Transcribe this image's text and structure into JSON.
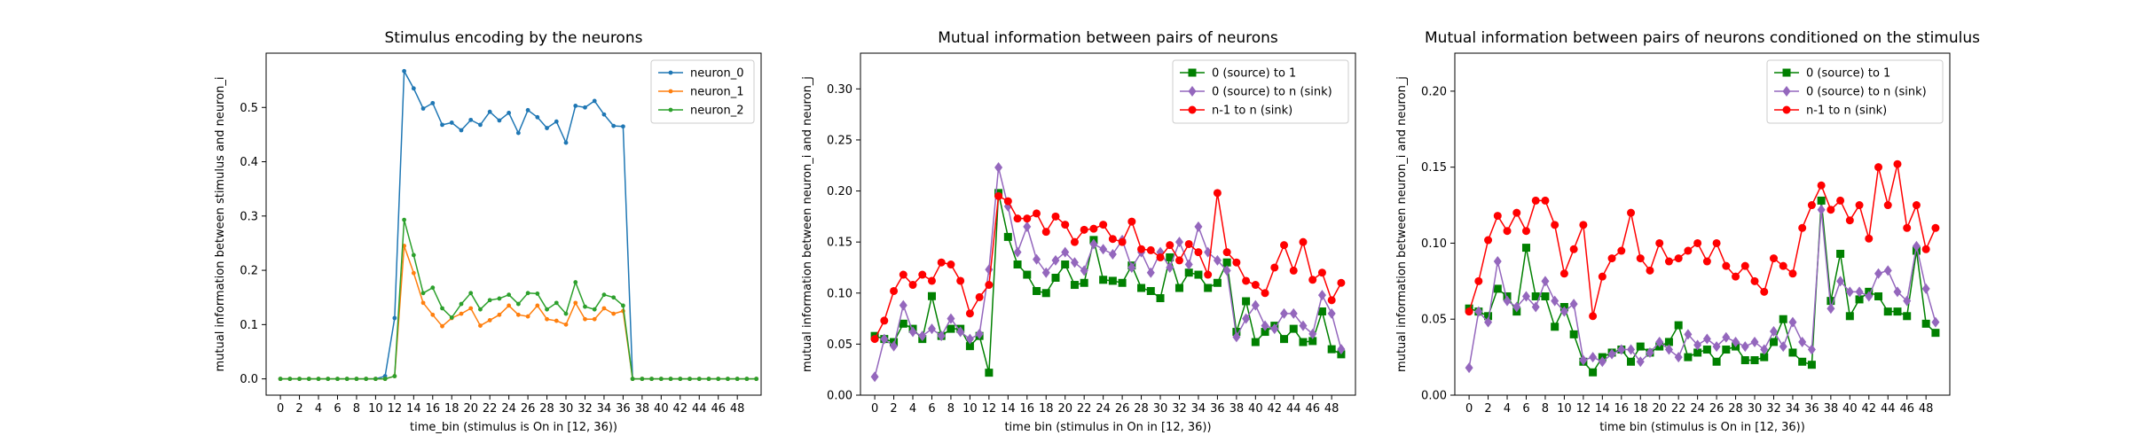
{
  "chart_data": [
    {
      "type": "line",
      "title": "Stimulus encoding by the neurons",
      "xlabel": "time_bin (stimulus is On in [12, 36))",
      "ylabel": "mutual information between stimulus and neuron_i",
      "xlim": [
        -1.5,
        50.5
      ],
      "ylim": [
        -0.03,
        0.6
      ],
      "xticks": [
        0,
        2,
        4,
        6,
        8,
        10,
        12,
        14,
        16,
        18,
        20,
        22,
        24,
        26,
        28,
        30,
        32,
        34,
        36,
        38,
        40,
        42,
        44,
        46,
        48
      ],
      "yticks": [
        0.0,
        0.1,
        0.2,
        0.3,
        0.4,
        0.5
      ],
      "ytick_labels": [
        "0.0",
        "0.1",
        "0.2",
        "0.3",
        "0.4",
        "0.5"
      ],
      "legend": "top-right",
      "grid": false,
      "series": [
        {
          "name": "neuron_0",
          "color": "#1f77b4",
          "marker": "dot",
          "values": [
            0,
            0,
            0,
            0,
            0,
            0,
            0,
            0,
            0,
            0,
            0,
            0.005,
            0.112,
            0.567,
            0.535,
            0.498,
            0.508,
            0.468,
            0.472,
            0.458,
            0.477,
            0.468,
            0.492,
            0.476,
            0.49,
            0.453,
            0.495,
            0.482,
            0.462,
            0.474,
            0.435,
            0.503,
            0.5,
            0.512,
            0.487,
            0.466,
            0.465,
            0,
            0,
            0,
            0,
            0,
            0,
            0,
            0,
            0,
            0,
            0,
            0,
            0,
            0
          ]
        },
        {
          "name": "neuron_1",
          "color": "#ff7f0e",
          "marker": "dot",
          "values": [
            0,
            0,
            0,
            0,
            0,
            0,
            0,
            0,
            0,
            0,
            0,
            0,
            0.005,
            0.245,
            0.195,
            0.14,
            0.118,
            0.097,
            0.112,
            0.12,
            0.13,
            0.098,
            0.108,
            0.118,
            0.135,
            0.118,
            0.115,
            0.135,
            0.11,
            0.107,
            0.1,
            0.14,
            0.11,
            0.11,
            0.13,
            0.12,
            0.125,
            0,
            0,
            0,
            0,
            0,
            0,
            0,
            0,
            0,
            0,
            0,
            0,
            0,
            0
          ]
        },
        {
          "name": "neuron_2",
          "color": "#2ca02c",
          "marker": "dot",
          "values": [
            0,
            0,
            0,
            0,
            0,
            0,
            0,
            0,
            0,
            0,
            0,
            0,
            0.005,
            0.293,
            0.228,
            0.158,
            0.168,
            0.13,
            0.113,
            0.138,
            0.158,
            0.128,
            0.145,
            0.148,
            0.155,
            0.138,
            0.158,
            0.157,
            0.128,
            0.14,
            0.12,
            0.178,
            0.133,
            0.128,
            0.155,
            0.15,
            0.135,
            0,
            0,
            0,
            0,
            0,
            0,
            0,
            0,
            0,
            0,
            0,
            0,
            0,
            0
          ]
        }
      ]
    },
    {
      "type": "line",
      "title": "Mutual information between pairs of neurons",
      "xlabel": "time bin (stimulus in On in [12, 36))",
      "ylabel": "mutual information between neuron_i and neuron_j",
      "xlim": [
        -1.5,
        50.5
      ],
      "ylim": [
        0.0,
        0.335
      ],
      "xticks": [
        0,
        2,
        4,
        6,
        8,
        10,
        12,
        14,
        16,
        18,
        20,
        22,
        24,
        26,
        28,
        30,
        32,
        34,
        36,
        38,
        40,
        42,
        44,
        46,
        48
      ],
      "yticks": [
        0.0,
        0.05,
        0.1,
        0.15,
        0.2,
        0.25,
        0.3
      ],
      "ytick_labels": [
        "0.00",
        "0.05",
        "0.10",
        "0.15",
        "0.20",
        "0.25",
        "0.30"
      ],
      "legend": "top-right",
      "grid": false,
      "series": [
        {
          "name": "0 (source) to 1",
          "color": "#008000",
          "marker": "square",
          "values": [
            0.058,
            0.055,
            0.052,
            0.07,
            0.065,
            0.055,
            0.097,
            0.058,
            0.065,
            0.065,
            0.048,
            0.058,
            0.022,
            0.198,
            0.155,
            0.128,
            0.118,
            0.102,
            0.1,
            0.115,
            0.128,
            0.108,
            0.11,
            0.152,
            0.113,
            0.112,
            0.11,
            0.127,
            0.105,
            0.102,
            0.095,
            0.135,
            0.105,
            0.12,
            0.118,
            0.105,
            0.11,
            0.13,
            0.062,
            0.092,
            0.052,
            0.062,
            0.068,
            0.055,
            0.065,
            0.052,
            0.053,
            0.082,
            0.045,
            0.04
          ]
        },
        {
          "name": "0 (source) to n (sink)",
          "color": "#9467bd",
          "marker": "diamond",
          "values": [
            0.018,
            0.055,
            0.048,
            0.088,
            0.062,
            0.058,
            0.065,
            0.058,
            0.075,
            0.062,
            0.055,
            0.06,
            0.123,
            0.223,
            0.185,
            0.14,
            0.165,
            0.133,
            0.12,
            0.132,
            0.14,
            0.13,
            0.122,
            0.148,
            0.143,
            0.138,
            0.152,
            0.125,
            0.14,
            0.12,
            0.14,
            0.125,
            0.15,
            0.128,
            0.165,
            0.14,
            0.132,
            0.122,
            0.057,
            0.075,
            0.088,
            0.068,
            0.065,
            0.08,
            0.08,
            0.068,
            0.06,
            0.098,
            0.08,
            0.045
          ]
        },
        {
          "name": "n-1 to n (sink)",
          "color": "#ff0000",
          "marker": "circle",
          "values": [
            0.055,
            0.073,
            0.102,
            0.118,
            0.108,
            0.118,
            0.112,
            0.13,
            0.128,
            0.112,
            0.08,
            0.096,
            0.108,
            0.195,
            0.19,
            0.173,
            0.173,
            0.178,
            0.16,
            0.175,
            0.167,
            0.15,
            0.162,
            0.163,
            0.167,
            0.153,
            0.15,
            0.17,
            0.143,
            0.142,
            0.135,
            0.147,
            0.132,
            0.148,
            0.14,
            0.118,
            0.198,
            0.14,
            0.13,
            0.112,
            0.108,
            0.1,
            0.125,
            0.147,
            0.122,
            0.15,
            0.113,
            0.12,
            0.093,
            0.11
          ]
        }
      ]
    },
    {
      "type": "line",
      "title": "Mutual information between pairs of neurons conditioned on the stimulus",
      "xlabel": "time bin (stimulus is On in [12, 36))",
      "ylabel": "mutual information between neuron_i and neuron_j",
      "xlim": [
        -1.5,
        50.5
      ],
      "ylim": [
        0.0,
        0.225
      ],
      "xticks": [
        0,
        2,
        4,
        6,
        8,
        10,
        12,
        14,
        16,
        18,
        20,
        22,
        24,
        26,
        28,
        30,
        32,
        34,
        36,
        38,
        40,
        42,
        44,
        46,
        48
      ],
      "yticks": [
        0.0,
        0.05,
        0.1,
        0.15,
        0.2
      ],
      "ytick_labels": [
        "0.00",
        "0.05",
        "0.10",
        "0.15",
        "0.20"
      ],
      "legend": "top-right",
      "grid": false,
      "series": [
        {
          "name": "0 (source) to 1",
          "color": "#008000",
          "marker": "square",
          "values": [
            0.057,
            0.055,
            0.052,
            0.07,
            0.065,
            0.055,
            0.097,
            0.065,
            0.065,
            0.045,
            0.058,
            0.04,
            0.022,
            0.015,
            0.025,
            0.028,
            0.03,
            0.022,
            0.032,
            0.028,
            0.032,
            0.035,
            0.046,
            0.025,
            0.028,
            0.03,
            0.022,
            0.03,
            0.032,
            0.023,
            0.023,
            0.025,
            0.035,
            0.05,
            0.028,
            0.022,
            0.02,
            0.128,
            0.062,
            0.093,
            0.052,
            0.063,
            0.068,
            0.065,
            0.055,
            0.055,
            0.052,
            0.095,
            0.047,
            0.041
          ]
        },
        {
          "name": "0 (source) to n (sink)",
          "color": "#9467bd",
          "marker": "diamond",
          "values": [
            0.018,
            0.055,
            0.048,
            0.088,
            0.062,
            0.058,
            0.065,
            0.058,
            0.075,
            0.062,
            0.055,
            0.06,
            0.023,
            0.025,
            0.022,
            0.027,
            0.03,
            0.03,
            0.022,
            0.028,
            0.035,
            0.03,
            0.025,
            0.04,
            0.033,
            0.037,
            0.032,
            0.038,
            0.035,
            0.032,
            0.035,
            0.03,
            0.042,
            0.032,
            0.048,
            0.035,
            0.03,
            0.122,
            0.057,
            0.075,
            0.068,
            0.068,
            0.065,
            0.08,
            0.082,
            0.068,
            0.062,
            0.098,
            0.07,
            0.048
          ]
        },
        {
          "name": "n-1 to n (sink)",
          "color": "#ff0000",
          "marker": "circle",
          "values": [
            0.055,
            0.075,
            0.102,
            0.118,
            0.108,
            0.12,
            0.108,
            0.128,
            0.128,
            0.112,
            0.08,
            0.096,
            0.112,
            0.052,
            0.078,
            0.09,
            0.095,
            0.12,
            0.09,
            0.082,
            0.1,
            0.088,
            0.09,
            0.095,
            0.1,
            0.088,
            0.1,
            0.085,
            0.078,
            0.085,
            0.075,
            0.068,
            0.09,
            0.085,
            0.08,
            0.11,
            0.125,
            0.138,
            0.122,
            0.128,
            0.115,
            0.125,
            0.103,
            0.15,
            0.125,
            0.152,
            0.11,
            0.125,
            0.096,
            0.11
          ]
        }
      ]
    }
  ]
}
